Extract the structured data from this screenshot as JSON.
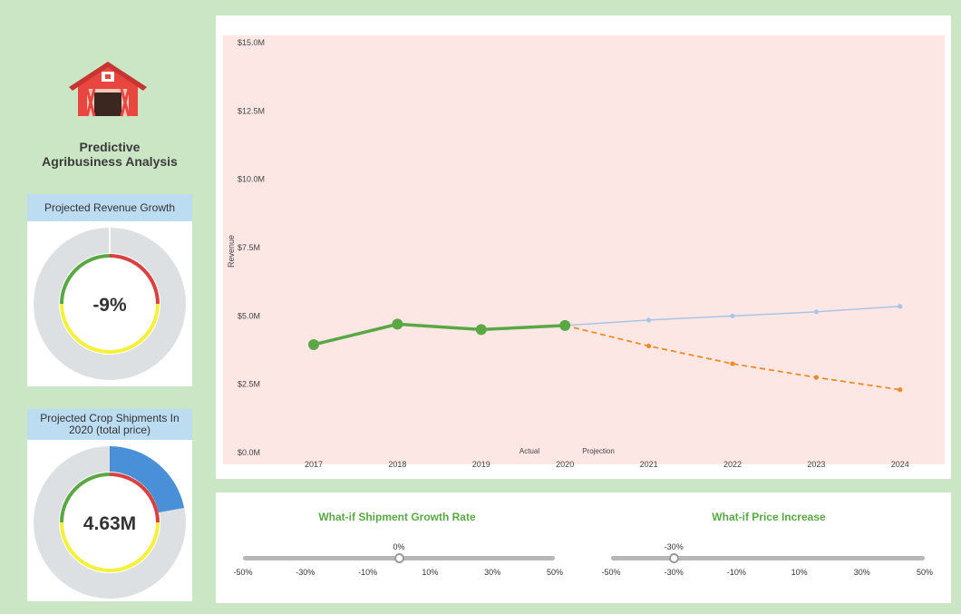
{
  "app": {
    "title": "Predictive\nAgribusiness Analysis",
    "logo_icon": "barn-icon"
  },
  "kpi_revenue_growth": {
    "title": "Projected Revenue Growth",
    "value": "-9%",
    "ring_colors": [
      "#d94040",
      "#f4f03c",
      "#5aa845"
    ]
  },
  "kpi_crop_shipments": {
    "title": "Projected Crop Shipments In 2020 (total price)",
    "value": "4.63M",
    "ring_colors": [
      "#d94040",
      "#f4f03c",
      "#5aa845"
    ],
    "highlight_color": "#4a90d9"
  },
  "chart_data": {
    "type": "line",
    "ylabel": "Revenue",
    "ylim": [
      0,
      15
    ],
    "y_ticks": [
      "$0.0M",
      "$2.5M",
      "$5.0M",
      "$7.5M",
      "$10.0M",
      "$12.5M",
      "$15.0M"
    ],
    "x": [
      "2017",
      "2018",
      "2019",
      "2020",
      "2021",
      "2022",
      "2023",
      "2024"
    ],
    "annotations": [
      "Actual",
      "Projection"
    ],
    "series": [
      {
        "values": [
          3.95,
          4.7,
          4.5,
          4.65,
          null,
          null,
          null,
          null
        ],
        "color": "#5aa845",
        "style": "solid"
      },
      {
        "values": [
          null,
          null,
          null,
          4.65,
          4.85,
          5.0,
          5.15,
          5.35
        ],
        "color": "#a9c4e8",
        "style": "solid"
      },
      {
        "values": [
          null,
          null,
          null,
          4.65,
          3.9,
          3.25,
          2.75,
          2.3
        ],
        "color": "#f08a24",
        "style": "dashed"
      }
    ],
    "background": "#fde7e5"
  },
  "sliders": [
    {
      "title": "What-if Shipment Growth Rate",
      "current": "0%",
      "value": 0,
      "ticks": [
        "-50%",
        "-30%",
        "-10%",
        "10%",
        "30%",
        "50%"
      ]
    },
    {
      "title": "What-if Price Increase",
      "current": "-30%",
      "value": -30,
      "ticks": [
        "-50%",
        "-30%",
        "-10%",
        "10%",
        "30%",
        "50%"
      ]
    }
  ]
}
